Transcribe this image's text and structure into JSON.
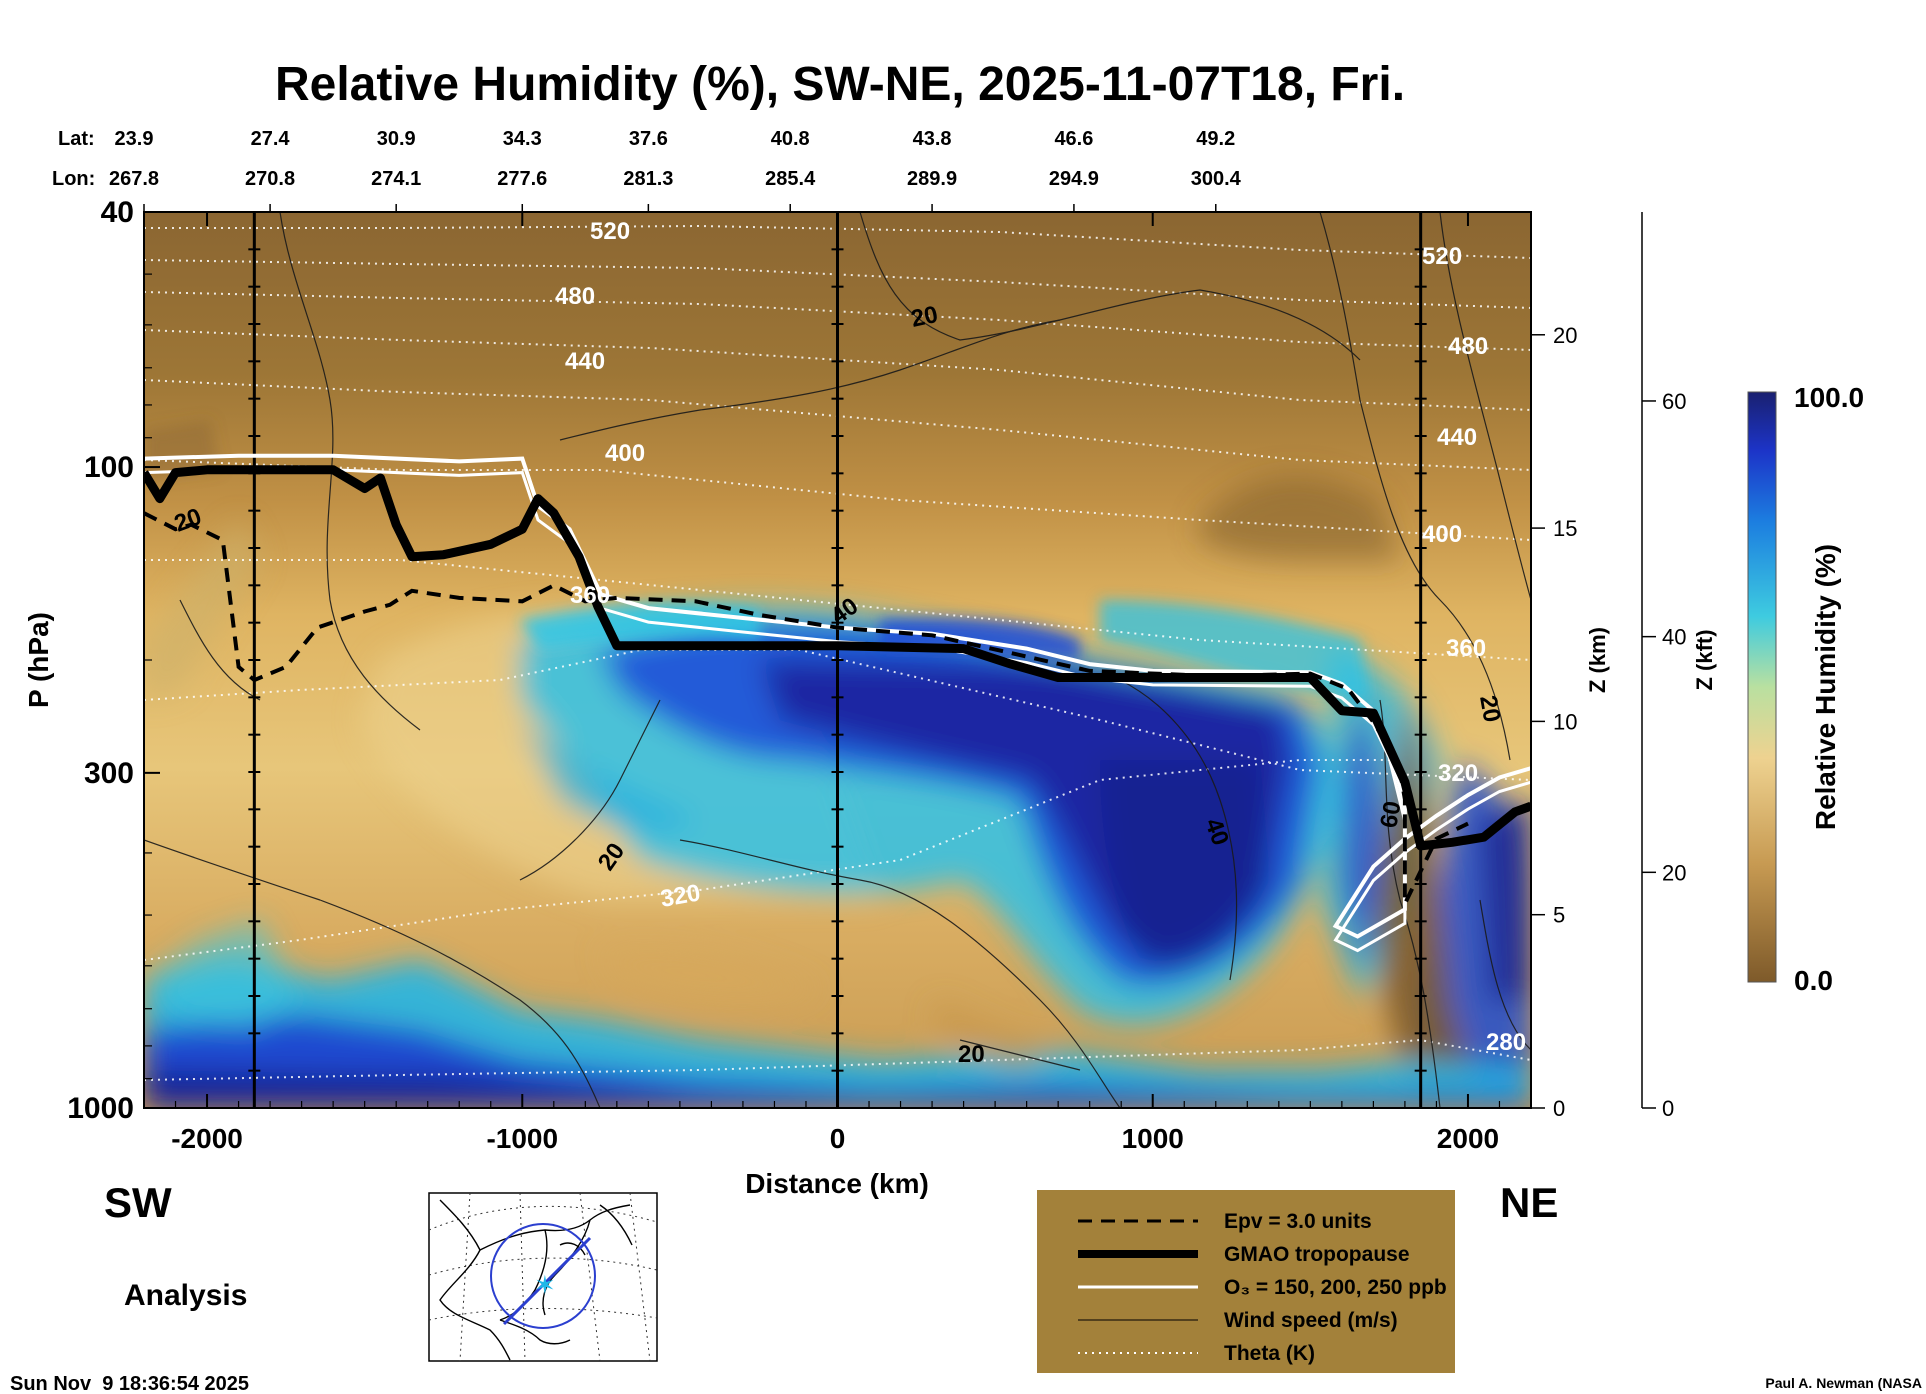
{
  "chart_data": {
    "type": "heatmap",
    "title": "Relative Humidity (%), SW-NE, 2025-11-07T18, Fri.",
    "xlabel": "Distance (km)",
    "ylabel": "P (hPa)",
    "xlim": [
      -2200,
      2200
    ],
    "ylim": [
      1000,
      40
    ],
    "y_scale": "log",
    "x_ticks": [
      -2000,
      -1000,
      0,
      1000,
      2000
    ],
    "x_tick_labels": [
      "-2000",
      "-1000",
      "0",
      "1000",
      "2000"
    ],
    "y_ticks": [
      40,
      100,
      300,
      1000
    ],
    "y_tick_labels": [
      "40",
      "100",
      "300",
      "1000"
    ],
    "z_km_axis": {
      "label": "Z (km)",
      "ticks": [
        0,
        5,
        10,
        15,
        20
      ],
      "tick_labels": [
        "0",
        "5",
        "10",
        "15",
        "20"
      ]
    },
    "z_kft_axis": {
      "label": "Z (kft)",
      "ticks": [
        0,
        20,
        40,
        60
      ],
      "tick_labels": [
        "0",
        "20",
        "40",
        "60"
      ]
    },
    "lat_label": "Lat:",
    "lon_label": "Lon:",
    "latlon_ticks": [
      {
        "x": -2200,
        "lat": "23.9",
        "lon": "267.8"
      },
      {
        "x": -1800,
        "lat": "27.4",
        "lon": "270.8"
      },
      {
        "x": -1400,
        "lat": "30.9",
        "lon": "274.1"
      },
      {
        "x": -1000,
        "lat": "34.3",
        "lon": "277.6"
      },
      {
        "x": -600,
        "lat": "37.6",
        "lon": "281.3"
      },
      {
        "x": -150,
        "lat": "40.8",
        "lon": "285.4"
      },
      {
        "x": 300,
        "lat": "43.8",
        "lon": "289.9"
      },
      {
        "x": 750,
        "lat": "46.6",
        "lon": "294.9"
      },
      {
        "x": 1200,
        "lat": "49.2",
        "lon": "300.4"
      }
    ],
    "vertical_markers_km": [
      -1850,
      0,
      1850
    ],
    "colorbar": {
      "label": "Relative Humidity (%)",
      "min": 0.0,
      "max": 100.0,
      "min_label": "0.0",
      "max_label": "100.0"
    },
    "series": [
      {
        "name": "GMAO tropopause",
        "points": [
          [
            -2200,
            102
          ],
          [
            -2150,
            112
          ],
          [
            -2100,
            102
          ],
          [
            -2000,
            101
          ],
          [
            -1800,
            101
          ],
          [
            -1600,
            101
          ],
          [
            -1500,
            108
          ],
          [
            -1450,
            104
          ],
          [
            -1400,
            123
          ],
          [
            -1350,
            138
          ],
          [
            -1250,
            137
          ],
          [
            -1100,
            132
          ],
          [
            -1000,
            125
          ],
          [
            -950,
            112
          ],
          [
            -900,
            118
          ],
          [
            -820,
            138
          ],
          [
            -760,
            165
          ],
          [
            -700,
            190
          ],
          [
            -600,
            190
          ],
          [
            0,
            190
          ],
          [
            400,
            192
          ],
          [
            550,
            203
          ],
          [
            700,
            213
          ],
          [
            1000,
            213
          ],
          [
            1500,
            213
          ],
          [
            1600,
            240
          ],
          [
            1700,
            242
          ],
          [
            1800,
            310
          ],
          [
            1850,
            390
          ],
          [
            1950,
            385
          ],
          [
            2050,
            378
          ],
          [
            2150,
            345
          ],
          [
            2200,
            338
          ]
        ]
      },
      {
        "name": "Epv = 3.0 units",
        "points": [
          [
            -2200,
            118
          ],
          [
            -2100,
            125
          ],
          [
            -2050,
            123
          ],
          [
            -1950,
            130
          ],
          [
            -1900,
            205
          ],
          [
            -1850,
            215
          ],
          [
            -1750,
            205
          ],
          [
            -1650,
            178
          ],
          [
            -1500,
            168
          ],
          [
            -1420,
            164
          ],
          [
            -1350,
            156
          ],
          [
            -1200,
            160
          ],
          [
            -1000,
            162
          ],
          [
            -900,
            153
          ],
          [
            -800,
            162
          ],
          [
            -700,
            160
          ],
          [
            -450,
            162
          ],
          [
            -250,
            170
          ],
          [
            0,
            178
          ],
          [
            300,
            183
          ],
          [
            550,
            195
          ],
          [
            800,
            208
          ],
          [
            1200,
            212
          ],
          [
            1500,
            210
          ],
          [
            1620,
            222
          ],
          [
            1700,
            250
          ],
          [
            1780,
            290
          ],
          [
            1800,
            330
          ],
          [
            1800,
            480
          ],
          [
            1900,
            380
          ],
          [
            2000,
            360
          ]
        ]
      },
      {
        "name": "O₃ = 150, 200, 250 ppb",
        "points": [
          [
            -2200,
            97
          ],
          [
            -1900,
            96
          ],
          [
            -1600,
            96
          ],
          [
            -1200,
            98
          ],
          [
            -1000,
            97
          ],
          [
            -950,
            115
          ],
          [
            -850,
            125
          ],
          [
            -750,
            158
          ],
          [
            -600,
            166
          ],
          [
            -300,
            172
          ],
          [
            0,
            178
          ],
          [
            300,
            182
          ],
          [
            600,
            192
          ],
          [
            800,
            203
          ],
          [
            1000,
            208
          ],
          [
            1500,
            209
          ],
          [
            1600,
            218
          ],
          [
            1700,
            240
          ],
          [
            1750,
            270
          ],
          [
            1800,
            340
          ],
          [
            1800,
            490
          ],
          [
            1650,
            540
          ],
          [
            1580,
            520
          ],
          [
            1700,
            420
          ],
          [
            1800,
            380
          ],
          [
            1900,
            350
          ],
          [
            2000,
            325
          ],
          [
            2100,
            305
          ],
          [
            2200,
            295
          ]
        ]
      },
      {
        "name": "Wind speed (m/s)",
        "contour_labels": [
          "20",
          "20",
          "20",
          "20",
          "40",
          "40",
          "60",
          "20"
        ]
      },
      {
        "name": "Theta (K)",
        "contour_labels": [
          "520",
          "480",
          "440",
          "400",
          "360",
          "320",
          "520",
          "480",
          "440",
          "400",
          "360",
          "320",
          "280"
        ]
      }
    ],
    "legend": {
      "placement": "bottom-center",
      "entries": [
        {
          "label": "Epv = 3.0 units",
          "style": "dashed"
        },
        {
          "label": "GMAO tropopause",
          "style": "thick"
        },
        {
          "label": "O₃ = 150, 200, 250 ppb",
          "style": "white"
        },
        {
          "label": "Wind speed (m/s)",
          "style": "thin"
        },
        {
          "label": "Theta (K)",
          "style": "dotted"
        }
      ]
    }
  },
  "labels": {
    "left_end": "SW",
    "right_end": "NE",
    "analysis": "Analysis",
    "timestamp": "Sun Nov  9 18:36:54 2025",
    "credit": "Paul A. Newman (NASA"
  },
  "colors": {
    "dry": "#7e5a2a",
    "moist_mid": "#e7c274",
    "wet_cyan": "#22c6e8",
    "saturated": "#1a2090",
    "legend_bg": "#a3813a"
  }
}
